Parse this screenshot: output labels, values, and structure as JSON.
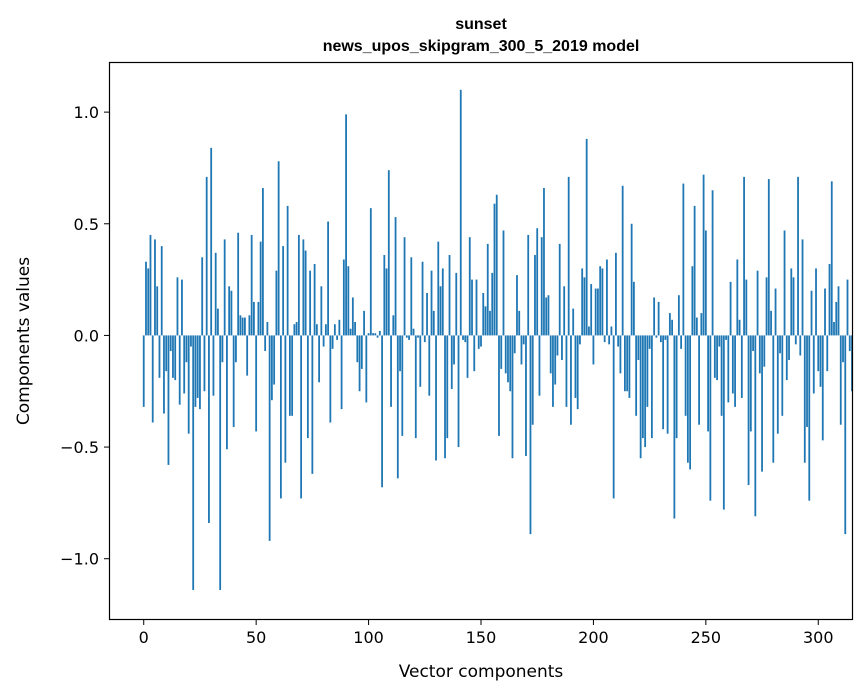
{
  "chart_data": {
    "type": "bar",
    "title": "sunset",
    "subtitle": "news_upos_skipgram_300_5_2019 model",
    "xlabel": "Vector components",
    "ylabel": "Components values",
    "xlim": [
      -15,
      315
    ],
    "ylim": [
      -1.27,
      1.22
    ],
    "xticks": [
      0,
      50,
      100,
      150,
      200,
      250,
      300
    ],
    "xtick_labels": [
      "0",
      "50",
      "100",
      "150",
      "200",
      "250",
      "300"
    ],
    "yticks": [
      -1.0,
      -0.5,
      0.0,
      0.5,
      1.0
    ],
    "ytick_labels": [
      "−1.0",
      "−0.5",
      "0.0",
      "0.5",
      "1.0"
    ],
    "bar_color": "#1f77b4",
    "grid": false,
    "values": [
      -0.32,
      0.33,
      0.3,
      0.45,
      -0.39,
      0.43,
      0.22,
      -0.19,
      0.4,
      -0.35,
      -0.16,
      -0.58,
      -0.07,
      -0.19,
      -0.2,
      0.26,
      -0.31,
      0.25,
      -0.26,
      -0.12,
      -0.44,
      -0.05,
      -1.14,
      -0.32,
      -0.28,
      -0.33,
      0.35,
      -0.25,
      0.71,
      -0.84,
      0.84,
      -0.27,
      0.37,
      0.12,
      -1.14,
      -0.12,
      0.43,
      -0.51,
      0.22,
      0.2,
      -0.41,
      -0.12,
      0.46,
      0.09,
      0.08,
      0.08,
      -0.18,
      0.09,
      0.45,
      0.15,
      -0.43,
      0.15,
      0.42,
      0.66,
      -0.07,
      0.06,
      -0.92,
      -0.29,
      -0.22,
      0.29,
      0.78,
      -0.73,
      0.4,
      -0.57,
      0.58,
      -0.36,
      -0.36,
      0.05,
      0.06,
      0.45,
      -0.73,
      0.43,
      0.38,
      -0.46,
      0.29,
      -0.62,
      0.32,
      0.05,
      -0.21,
      0.22,
      -0.05,
      0.05,
      0.51,
      -0.39,
      -0.06,
      0.05,
      -0.02,
      0.07,
      -0.33,
      0.34,
      0.99,
      0.31,
      0.03,
      0.17,
      0.06,
      -0.12,
      -0.25,
      -0.15,
      0.11,
      -0.3,
      0.01,
      0.57,
      0.01,
      0.01,
      -0.01,
      0.02,
      -0.68,
      0.36,
      0.3,
      0.74,
      -0.32,
      0.09,
      0.53,
      -0.64,
      -0.16,
      -0.45,
      0.44,
      -0.01,
      -0.02,
      0.35,
      0.03,
      -0.46,
      -0.01,
      -0.23,
      0.33,
      -0.03,
      0.19,
      -0.27,
      0.29,
      0.11,
      -0.56,
      0.42,
      0.22,
      0.3,
      -0.55,
      -0.46,
      0.36,
      -0.24,
      -0.13,
      0.28,
      -0.5,
      1.1,
      -0.02,
      -0.03,
      -0.19,
      0.44,
      0.25,
      -0.16,
      0.25,
      -0.06,
      -0.05,
      0.19,
      0.13,
      0.41,
      0.11,
      0.28,
      0.59,
      0.63,
      -0.45,
      -0.15,
      0.47,
      -0.17,
      -0.21,
      -0.25,
      -0.55,
      -0.08,
      0.27,
      0.11,
      -0.13,
      -0.04,
      -0.54,
      0.45,
      -0.89,
      -0.4,
      0.36,
      0.48,
      -0.27,
      0.44,
      0.66,
      0.17,
      0.18,
      -0.17,
      -0.32,
      -0.22,
      -0.09,
      0.41,
      -0.11,
      0.22,
      -0.32,
      0.71,
      -0.4,
      0.12,
      -0.28,
      -0.33,
      -0.04,
      0.3,
      0.26,
      0.88,
      0.04,
      0.23,
      -0.13,
      0.21,
      0.21,
      0.31,
      0.3,
      -0.03,
      0.34,
      -0.04,
      0.04,
      -0.73,
      0.37,
      -0.05,
      -0.17,
      0.67,
      -0.25,
      -0.25,
      -0.28,
      0.5,
      0.24,
      -0.36,
      -0.11,
      -0.55,
      -0.46,
      -0.5,
      -0.32,
      -0.06,
      -0.46,
      0.17,
      -0.01,
      0.15,
      -0.03,
      -0.42,
      -0.02,
      -0.44,
      0.1,
      0.07,
      -0.82,
      -0.46,
      0.18,
      -0.06,
      0.68,
      -0.36,
      -0.57,
      -0.6,
      0.31,
      0.58,
      0.08,
      -0.4,
      0.1,
      0.72,
      0.47,
      -0.43,
      -0.74,
      0.65,
      -0.19,
      -0.2,
      -0.05,
      -0.36,
      -0.78,
      -0.02,
      -0.3,
      0.24,
      -0.26,
      -0.32,
      0.34,
      0.07,
      -0.28,
      0.71,
      0.25,
      -0.67,
      -0.43,
      -0.07,
      -0.81,
      0.29,
      -0.17,
      -0.61,
      -0.14,
      0.26,
      0.7,
      0.11,
      -0.57,
      0.21,
      -0.44,
      -0.08,
      -0.36,
      0.47,
      -0.2,
      -0.11,
      0.3,
      0.26,
      -0.04,
      0.71,
      -0.09,
      0.43,
      -0.57,
      -0.41,
      -0.74,
      0.2,
      -0.26,
      0.3,
      -0.16,
      -0.23,
      -0.47,
      0.21,
      -0.16,
      0.32,
      0.69,
      0.06,
      0.15,
      0.22,
      -0.4,
      -0.12,
      -0.89,
      0.25,
      -0.07,
      -0.25
    ]
  }
}
